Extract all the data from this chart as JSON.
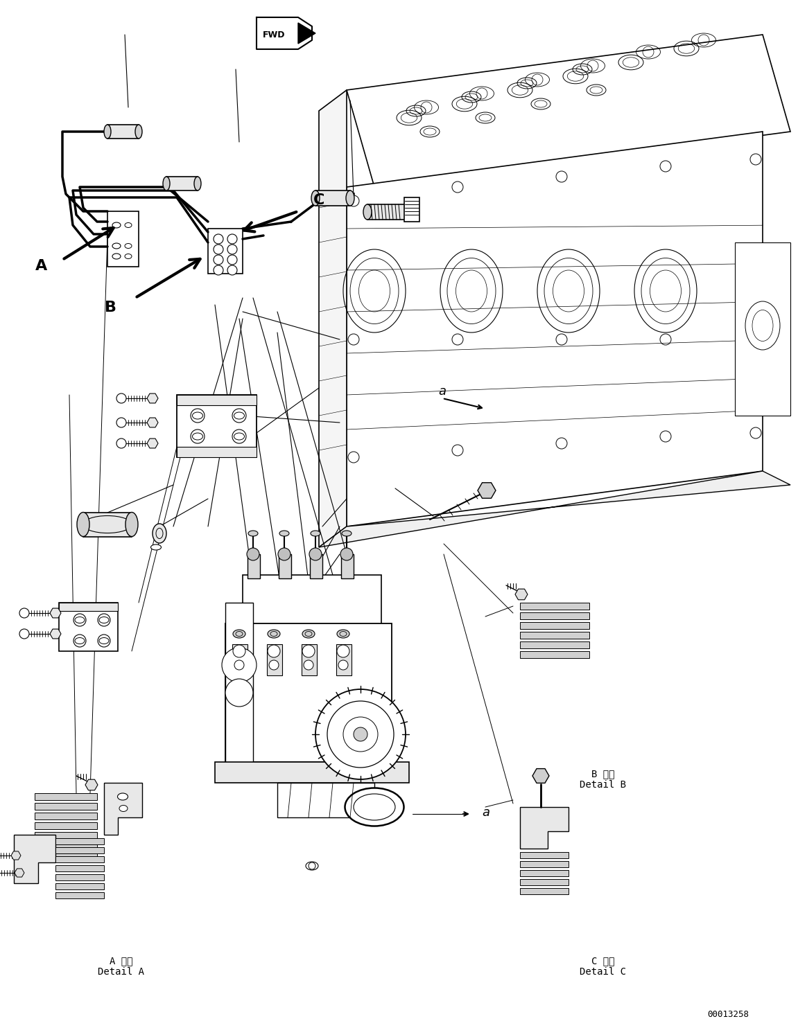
{
  "figure_number": "00013258",
  "background_color": "#ffffff",
  "line_color": "#000000",
  "figsize": [
    11.51,
    14.84
  ],
  "dpi": 100,
  "font_size_detail": 10,
  "font_size_label": 13,
  "font_size_fignum": 9,
  "detail_A_label": "A 詳細\nDetail A",
  "detail_B_label": "B 詳細\nDetail B",
  "detail_C_label": "C 詳細\nDetail C"
}
